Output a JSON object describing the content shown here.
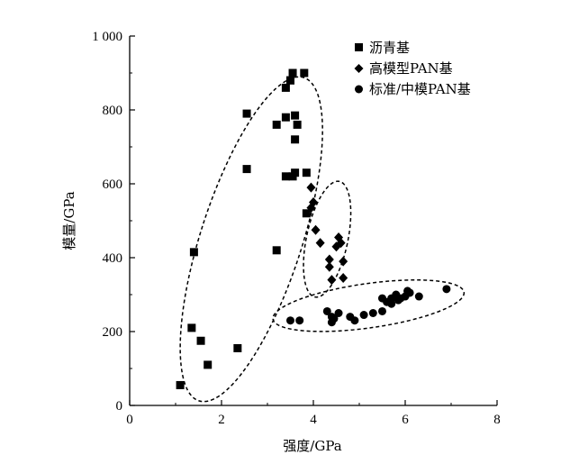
{
  "chart_data": {
    "type": "scatter",
    "title": "",
    "xlabel": "强度/GPa",
    "ylabel": "模量/GPa",
    "xlim": [
      0,
      8
    ],
    "ylim": [
      0,
      1000
    ],
    "x_ticks": [
      0,
      2,
      4,
      6,
      8
    ],
    "y_ticks": [
      0,
      200,
      400,
      600,
      800,
      1000
    ],
    "x_tick_labels": [
      "0",
      "2",
      "4",
      "6",
      "8"
    ],
    "y_tick_labels": [
      "0",
      "200",
      "400",
      "600",
      "800",
      "1 000"
    ],
    "grid": false,
    "legend_position": "top-right",
    "series": [
      {
        "name": "沥青基",
        "marker": "square",
        "color": "#000000",
        "points": [
          [
            3.55,
            900
          ],
          [
            3.8,
            900
          ],
          [
            3.4,
            860
          ],
          [
            3.5,
            880
          ],
          [
            3.5,
            880
          ],
          [
            2.55,
            790
          ],
          [
            3.2,
            760
          ],
          [
            3.4,
            780
          ],
          [
            3.6,
            785
          ],
          [
            3.65,
            760
          ],
          [
            3.6,
            720
          ],
          [
            2.55,
            640
          ],
          [
            3.4,
            620
          ],
          [
            3.55,
            620
          ],
          [
            3.6,
            630
          ],
          [
            3.85,
            630
          ],
          [
            3.85,
            520
          ],
          [
            3.2,
            420
          ],
          [
            1.4,
            415
          ],
          [
            1.35,
            210
          ],
          [
            1.55,
            175
          ],
          [
            2.35,
            155
          ],
          [
            1.7,
            110
          ],
          [
            1.1,
            55
          ]
        ]
      },
      {
        "name": "高模型PAN基",
        "marker": "diamond",
        "color": "#000000",
        "points": [
          [
            3.95,
            590
          ],
          [
            4.0,
            550
          ],
          [
            3.95,
            535
          ],
          [
            4.05,
            475
          ],
          [
            4.15,
            440
          ],
          [
            4.55,
            455
          ],
          [
            4.5,
            430
          ],
          [
            4.6,
            440
          ],
          [
            4.35,
            395
          ],
          [
            4.65,
            390
          ],
          [
            4.35,
            375
          ],
          [
            4.65,
            345
          ],
          [
            4.4,
            340
          ]
        ]
      },
      {
        "name": "标准/中模PAN基",
        "marker": "circle",
        "color": "#000000",
        "points": [
          [
            3.5,
            230
          ],
          [
            3.7,
            230
          ],
          [
            4.3,
            255
          ],
          [
            4.4,
            240
          ],
          [
            4.45,
            235
          ],
          [
            4.4,
            225
          ],
          [
            4.55,
            250
          ],
          [
            4.8,
            240
          ],
          [
            4.9,
            230
          ],
          [
            5.1,
            245
          ],
          [
            5.3,
            250
          ],
          [
            5.5,
            255
          ],
          [
            5.5,
            290
          ],
          [
            5.6,
            280
          ],
          [
            5.7,
            275
          ],
          [
            5.7,
            290
          ],
          [
            5.8,
            300
          ],
          [
            5.85,
            285
          ],
          [
            5.9,
            290
          ],
          [
            6.0,
            295
          ],
          [
            6.05,
            310
          ],
          [
            6.1,
            305
          ],
          [
            6.3,
            295
          ],
          [
            6.9,
            315
          ]
        ]
      }
    ],
    "annotations": [
      {
        "type": "dashed-ellipse",
        "group": "沥青基",
        "center": [
          2.65,
          450
        ],
        "semi_x": 1.1,
        "semi_y": 460,
        "angle_deg": 18
      },
      {
        "type": "dashed-ellipse",
        "group": "高模型PAN基",
        "center": [
          4.3,
          450
        ],
        "semi_x": 0.45,
        "semi_y": 160,
        "angle_deg": 12
      },
      {
        "type": "dashed-ellipse",
        "group": "标准/中模PAN基",
        "center": [
          5.2,
          270
        ],
        "semi_x": 2.1,
        "semi_y": 60,
        "angle_deg": -8
      }
    ]
  }
}
